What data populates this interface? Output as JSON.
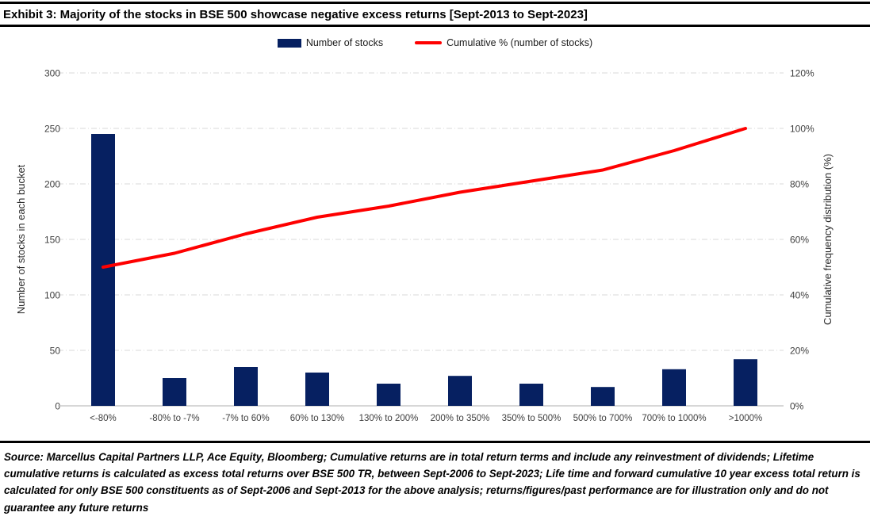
{
  "title": "Exhibit 3: Majority of the stocks in BSE 500 showcase negative excess returns [Sept-2013 to Sept-2023]",
  "legend": {
    "bar_label": "Number of stocks",
    "line_label": "Cumulative % (number of stocks)"
  },
  "chart_data": {
    "type": "bar",
    "subtype": "combo bar + cumulative line",
    "categories": [
      "<-80%",
      "-80% to -7%",
      "-7% to 60%",
      "60% to 130%",
      "130% to 200%",
      "200% to 350%",
      "350% to 500%",
      "500% to 700%",
      "700% to 1000%",
      ">1000%"
    ],
    "series": [
      {
        "name": "Number of stocks",
        "type": "bar",
        "axis": "left",
        "color": "#062061",
        "values": [
          245,
          25,
          35,
          30,
          20,
          27,
          20,
          17,
          33,
          42
        ]
      },
      {
        "name": "Cumulative % (number of stocks)",
        "type": "line",
        "axis": "right",
        "color": "#fe0000",
        "values": [
          50,
          55,
          62,
          68,
          72,
          77,
          81,
          85,
          92,
          100
        ]
      }
    ],
    "left_axis": {
      "label": "Number of stocks in each bucket",
      "min": 0,
      "max": 300,
      "step": 50,
      "ticks": [
        "0",
        "50",
        "100",
        "150",
        "200",
        "250",
        "300"
      ]
    },
    "right_axis": {
      "label": "Cumulative frequency distribution (%)",
      "min": 0,
      "max": 120,
      "step": 20,
      "ticks": [
        "0%",
        "20%",
        "40%",
        "60%",
        "80%",
        "100%",
        "120%"
      ]
    },
    "grid": "horizontal dashed",
    "grid_color": "#d9d9d9",
    "axis_color": "#bfbfbf",
    "legend_position": "top-center"
  },
  "source_note": {
    "text": "Source: Marcellus Capital Partners LLP, Ace Equity, Bloomberg; Cumulative returns are in total return terms and include any reinvestment of dividends; Lifetime cumulative returns is calculated as excess total returns over BSE 500 TR, between Sept-2006 to Sept-2023; Life time and forward cumulative 10 year excess total return is calculated for only BSE 500 constituents as of Sept-2006 and Sept-2013 for the above analysis; returns/figures/past performance are for illustration only and do not guarantee any future returns"
  }
}
